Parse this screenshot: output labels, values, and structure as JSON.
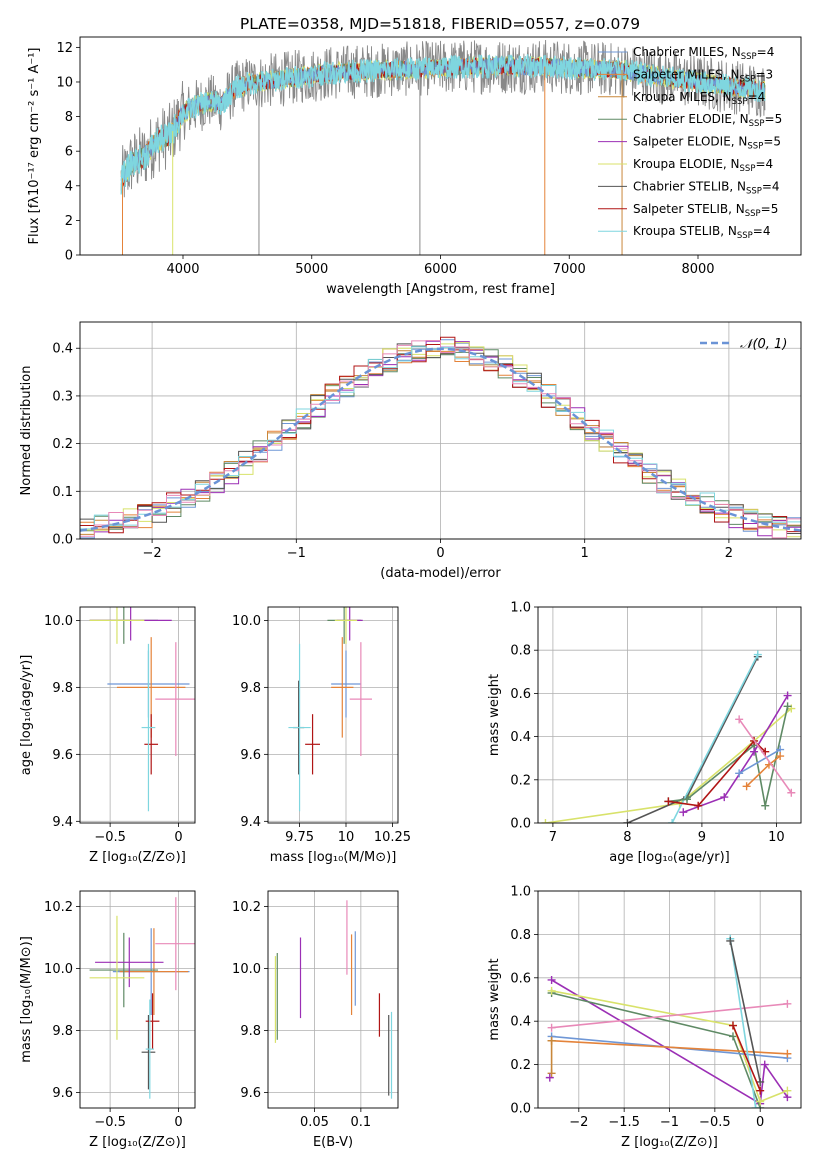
{
  "figure_title": "PLATE=0358, MJD=51818, FIBERID=0557, z=0.079",
  "colors": {
    "chabrier_miles": "#6f97d6",
    "salpeter_miles": "#e4833a",
    "kroupa_miles": "#c8873a",
    "chabrier_elodie": "#5f8a65",
    "salpeter_elodie": "#9b2fb5",
    "kroupa_elodie": "#d8e26a",
    "chabrier_stelib": "#555555",
    "salpeter_stelib": "#b01515",
    "kroupa_stelib": "#7fd6df",
    "pink": "#e889b8",
    "spectrum": "#888888",
    "gauss": "#6a93d6",
    "grid": "#b0b0b0"
  },
  "chart_data": [
    {
      "id": "spectrum",
      "type": "line",
      "title": "PLATE=0358, MJD=51818, FIBERID=0557, z=0.079",
      "xlabel": "wavelength [Angstrom, rest frame]",
      "ylabel": "Flux [fλ10⁻¹⁷ erg cm⁻² s⁻¹ A⁻¹]",
      "xlim": [
        3200,
        8800
      ],
      "ylim": [
        0,
        12.6
      ],
      "xticks": [
        4000,
        5000,
        6000,
        7000,
        8000
      ],
      "yticks": [
        0,
        2,
        4,
        6,
        8,
        10,
        12
      ],
      "grid": false,
      "legend": "top-right",
      "legend_entries": [
        "Chabrier MILES, N_SSP=4",
        "Salpeter MILES, N_SSP=3",
        "Kroupa MILES, N_SSP=4",
        "Chabrier ELODIE, N_SSP=5",
        "Salpeter ELODIE, N_SSP=5",
        "Kroupa ELODIE, N_SSP=4",
        "Chabrier STELIB, N_SSP=4",
        "Salpeter STELIB, N_SSP=5",
        "Kroupa STELIB, N_SSP=4"
      ],
      "continuum": [
        [
          3520,
          4.3
        ],
        [
          3600,
          5.3
        ],
        [
          3700,
          5.7
        ],
        [
          3800,
          6.6
        ],
        [
          3900,
          6.9
        ],
        [
          4000,
          8.2
        ],
        [
          4100,
          8.6
        ],
        [
          4200,
          8.9
        ],
        [
          4300,
          8.7
        ],
        [
          4400,
          9.6
        ],
        [
          4500,
          9.9
        ],
        [
          4700,
          10.1
        ],
        [
          4900,
          10.3
        ],
        [
          5100,
          10.5
        ],
        [
          5300,
          10.6
        ],
        [
          5600,
          10.7
        ],
        [
          5900,
          10.8
        ],
        [
          6200,
          10.9
        ],
        [
          6500,
          10.9
        ],
        [
          6800,
          10.9
        ],
        [
          7100,
          10.8
        ],
        [
          7400,
          10.7
        ],
        [
          7700,
          10.3
        ],
        [
          8000,
          10.0
        ],
        [
          8300,
          9.7
        ],
        [
          8520,
          9.5
        ]
      ]
    },
    {
      "id": "residuals",
      "type": "line",
      "xlabel": "(data-model)/error",
      "ylabel": "Normed distribution",
      "xlim": [
        -2.5,
        2.5
      ],
      "ylim": [
        0,
        0.455
      ],
      "xticks": [
        -2,
        -1,
        0,
        1,
        2
      ],
      "yticks": [
        0.0,
        0.1,
        0.2,
        0.3,
        0.4
      ],
      "grid": true,
      "legend": "top-right",
      "legend_entries": [
        "𝒩(0, 1)"
      ]
    },
    {
      "id": "age_vs_Z",
      "type": "scatter",
      "xlabel": "Z [log₁₀(Z/Z⊙)]",
      "ylabel": "age  [log₁₀(age/yr)]",
      "xlim": [
        -0.72,
        0.12
      ],
      "ylim": [
        9.395,
        10.04
      ],
      "xticks": [
        -0.5,
        0.0
      ],
      "yticks": [
        9.4,
        9.6,
        9.8,
        10.0
      ],
      "grid": true,
      "points": [
        {
          "s": "chabrier_miles",
          "x": -0.22,
          "y": 9.81,
          "xe": 0.3,
          "ye": 0.1
        },
        {
          "s": "salpeter_miles",
          "x": -0.2,
          "y": 9.8,
          "xe": 0.25,
          "ye": 0.15
        },
        {
          "s": "chabrier_elodie",
          "x": -0.4,
          "y": 10.0,
          "xe": 0.25,
          "ye": 0.07
        },
        {
          "s": "salpeter_elodie",
          "x": -0.35,
          "y": 10.0,
          "xe": 0.3,
          "ye": 0.06
        },
        {
          "s": "kroupa_elodie",
          "x": -0.45,
          "y": 10.0,
          "xe": 0.2,
          "ye": 0.07
        },
        {
          "s": "salpeter_stelib",
          "x": -0.2,
          "y": 9.63,
          "xe": 0.05,
          "ye": 0.09
        },
        {
          "s": "kroupa_stelib",
          "x": -0.22,
          "y": 9.68,
          "xe": 0.05,
          "ye": 0.25
        },
        {
          "s": "pink",
          "x": -0.02,
          "y": 9.765,
          "xe": 0.15,
          "ye": 0.17
        }
      ]
    },
    {
      "id": "age_vs_mass",
      "type": "scatter",
      "xlabel": "mass [log₁₀(M/M⊙)]",
      "ylabel": "",
      "xlim": [
        9.58,
        10.28
      ],
      "ylim": [
        9.395,
        10.04
      ],
      "xticks": [
        9.75,
        10.0,
        10.25
      ],
      "yticks": [
        9.4,
        9.6,
        9.8,
        10.0
      ],
      "grid": true,
      "points": [
        {
          "s": "chabrier_miles",
          "x": 10.0,
          "y": 9.81,
          "xe": 0.08,
          "ye": 0.1
        },
        {
          "s": "salpeter_miles",
          "x": 9.98,
          "y": 9.8,
          "xe": 0.06,
          "ye": 0.15
        },
        {
          "s": "chabrier_elodie",
          "x": 9.99,
          "y": 10.0,
          "xe": 0.09,
          "ye": 0.07
        },
        {
          "s": "salpeter_elodie",
          "x": 10.02,
          "y": 10.0,
          "xe": 0.07,
          "ye": 0.06
        },
        {
          "s": "kroupa_elodie",
          "x": 10.0,
          "y": 10.0,
          "xe": 0.06,
          "ye": 0.07
        },
        {
          "s": "chabrier_stelib",
          "x": 9.745,
          "y": 9.68,
          "xe": 0.03,
          "ye": 0.14
        },
        {
          "s": "salpeter_stelib",
          "x": 9.82,
          "y": 9.63,
          "xe": 0.04,
          "ye": 0.09
        },
        {
          "s": "kroupa_stelib",
          "x": 9.75,
          "y": 9.68,
          "xe": 0.06,
          "ye": 0.25
        },
        {
          "s": "pink",
          "x": 10.08,
          "y": 9.765,
          "xe": 0.06,
          "ye": 0.17
        }
      ]
    },
    {
      "id": "massweight_vs_age",
      "type": "line",
      "xlabel": "age  [log₁₀(age/yr)]",
      "ylabel": "mass weight",
      "xlim": [
        6.8,
        10.33
      ],
      "ylim": [
        0,
        1.0
      ],
      "xticks": [
        7,
        8,
        9,
        10
      ],
      "yticks": [
        0.0,
        0.2,
        0.4,
        0.6,
        0.8,
        1.0
      ],
      "grid": true,
      "series": [
        {
          "s": "kroupa_elodie",
          "x": [
            6.9,
            8.7,
            9.7,
            10.2
          ],
          "y": [
            0.0,
            0.09,
            0.38,
            0.53
          ]
        },
        {
          "s": "chabrier_stelib",
          "x": [
            8.0,
            8.8,
            9.75
          ],
          "y": [
            0.0,
            0.12,
            0.77
          ]
        },
        {
          "s": "kroupa_stelib",
          "x": [
            8.6,
            9.75
          ],
          "y": [
            0.0,
            0.78
          ]
        },
        {
          "s": "chabrier_elodie",
          "x": [
            8.55,
            8.8,
            9.7,
            9.85,
            10.15
          ],
          "y": [
            0.1,
            0.11,
            0.36,
            0.08,
            0.54
          ]
        },
        {
          "s": "salpeter_elodie",
          "x": [
            8.75,
            9.3,
            9.7,
            10.15
          ],
          "y": [
            0.05,
            0.12,
            0.33,
            0.59
          ]
        },
        {
          "s": "salpeter_stelib",
          "x": [
            8.55,
            8.95,
            9.7,
            9.85
          ],
          "y": [
            0.1,
            0.08,
            0.38,
            0.33
          ]
        },
        {
          "s": "chabrier_miles",
          "x": [
            9.5,
            10.05
          ],
          "y": [
            0.23,
            0.34
          ]
        },
        {
          "s": "salpeter_miles",
          "x": [
            9.6,
            9.9,
            10.05
          ],
          "y": [
            0.17,
            0.27,
            0.31
          ]
        },
        {
          "s": "pink",
          "x": [
            9.5,
            10.2
          ],
          "y": [
            0.48,
            0.14
          ]
        }
      ]
    },
    {
      "id": "mass_vs_Z",
      "type": "scatter",
      "xlabel": "Z [log₁₀(Z/Z⊙)]",
      "ylabel": "mass [log₁₀(M/M⊙)]",
      "xlim": [
        -0.72,
        0.12
      ],
      "ylim": [
        9.55,
        10.25
      ],
      "xticks": [
        -0.5,
        0.0
      ],
      "yticks": [
        9.6,
        9.8,
        10.0,
        10.2
      ],
      "grid": true,
      "points": [
        {
          "s": "chabrier_miles",
          "x": -0.2,
          "y": 9.99,
          "xe": 0.28,
          "ye": 0.14
        },
        {
          "s": "salpeter_miles",
          "x": -0.18,
          "y": 9.99,
          "xe": 0.25,
          "ye": 0.14
        },
        {
          "s": "chabrier_elodie",
          "x": -0.4,
          "y": 9.995,
          "xe": 0.25,
          "ye": 0.12
        },
        {
          "s": "salpeter_elodie",
          "x": -0.36,
          "y": 10.02,
          "xe": 0.25,
          "ye": 0.08
        },
        {
          "s": "kroupa_elodie",
          "x": -0.45,
          "y": 9.97,
          "xe": 0.2,
          "ye": 0.2
        },
        {
          "s": "chabrier_stelib",
          "x": -0.22,
          "y": 9.73,
          "xe": 0.05,
          "ye": 0.12
        },
        {
          "s": "salpeter_stelib",
          "x": -0.19,
          "y": 9.83,
          "xe": 0.05,
          "ye": 0.09
        },
        {
          "s": "kroupa_stelib",
          "x": -0.21,
          "y": 9.74,
          "xe": 0.03,
          "ye": 0.16
        },
        {
          "s": "pink",
          "x": -0.02,
          "y": 10.08,
          "xe": 0.15,
          "ye": 0.15
        }
      ]
    },
    {
      "id": "mass_vs_ebv",
      "type": "scatter",
      "xlabel": "E(B-V)",
      "ylabel": "",
      "xlim": [
        0.0,
        0.14
      ],
      "ylim": [
        9.55,
        10.25
      ],
      "xticks": [
        0.05,
        0.1
      ],
      "yticks": [
        9.6,
        9.8,
        10.0,
        10.2
      ],
      "grid": true,
      "points": [
        {
          "s": "kroupa_elodie",
          "x": 0.008,
          "y": 9.9,
          "xe": 0,
          "ye": 0.14
        },
        {
          "s": "chabrier_elodie",
          "x": 0.01,
          "y": 9.91,
          "xe": 0,
          "ye": 0.14
        },
        {
          "s": "salpeter_elodie",
          "x": 0.035,
          "y": 9.97,
          "xe": 0,
          "ye": 0.13
        },
        {
          "s": "pink",
          "x": 0.085,
          "y": 10.1,
          "xe": 0,
          "ye": 0.12
        },
        {
          "s": "salpeter_miles",
          "x": 0.09,
          "y": 9.98,
          "xe": 0,
          "ye": 0.13
        },
        {
          "s": "chabrier_miles",
          "x": 0.094,
          "y": 10.0,
          "xe": 0,
          "ye": 0.12
        },
        {
          "s": "salpeter_stelib",
          "x": 0.12,
          "y": 9.85,
          "xe": 0,
          "ye": 0.07
        },
        {
          "s": "chabrier_stelib",
          "x": 0.13,
          "y": 9.72,
          "xe": 0,
          "ye": 0.13
        },
        {
          "s": "kroupa_stelib",
          "x": 0.133,
          "y": 9.72,
          "xe": 0,
          "ye": 0.14
        }
      ]
    },
    {
      "id": "massweight_vs_Z",
      "type": "line",
      "xlabel": "Z [log₁₀(Z/Z⊙)]",
      "ylabel": "mass weight",
      "xlim": [
        -2.45,
        0.45
      ],
      "ylim": [
        0,
        1.0
      ],
      "xticks": [
        -2.0,
        -1.5,
        -1.0,
        -0.5,
        0.0
      ],
      "yticks": [
        0.0,
        0.2,
        0.4,
        0.6,
        0.8,
        1.0
      ],
      "grid": true,
      "series": [
        {
          "s": "salpeter_elodie",
          "x": [
            -2.3,
            0.0,
            0.05,
            0.3
          ],
          "y": [
            0.59,
            0.02,
            0.2,
            0.05
          ]
        },
        {
          "s": "chabrier_elodie",
          "x": [
            -2.3,
            -0.3,
            0.0
          ],
          "y": [
            0.53,
            0.33,
            0.0
          ]
        },
        {
          "s": "kroupa_elodie",
          "x": [
            -2.3,
            -0.3,
            0.0,
            0.3
          ],
          "y": [
            0.54,
            0.38,
            0.03,
            0.08
          ]
        },
        {
          "s": "pink",
          "x": [
            -2.3,
            0.3
          ],
          "y": [
            0.37,
            0.48
          ]
        },
        {
          "s": "chabrier_miles",
          "x": [
            -2.3,
            0.3
          ],
          "y": [
            0.33,
            0.23
          ]
        },
        {
          "s": "salpeter_miles",
          "x": [
            -2.3,
            0.3
          ],
          "y": [
            0.31,
            0.25
          ]
        },
        {
          "s": "kroupa_miles",
          "x": [
            -2.3,
            -2.3
          ],
          "y": [
            0.16,
            0.31
          ]
        },
        {
          "s": "kroupa_stelib",
          "x": [
            -0.33,
            -0.05
          ],
          "y": [
            0.78,
            0.0
          ]
        },
        {
          "s": "chabrier_stelib",
          "x": [
            -0.33,
            0.0
          ],
          "y": [
            0.77,
            0.12
          ]
        },
        {
          "s": "salpeter_stelib",
          "x": [
            -0.3,
            0.0
          ],
          "y": [
            0.38,
            0.08
          ]
        },
        {
          "s": "salpeter_elodie2",
          "x": [
            -2.32
          ],
          "y": [
            0.14
          ]
        }
      ]
    }
  ]
}
